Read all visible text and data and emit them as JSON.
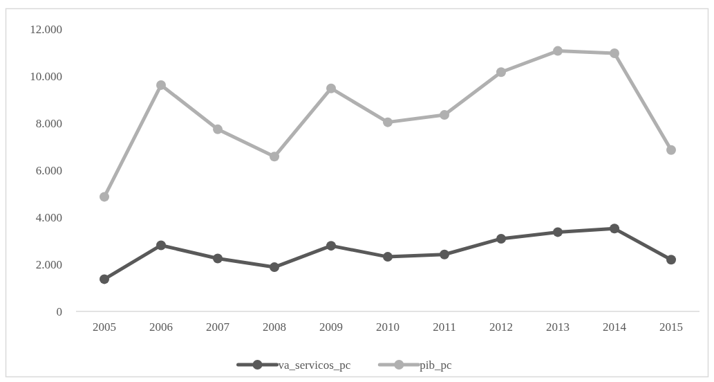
{
  "chart_data": {
    "type": "line",
    "categories": [
      "2005",
      "2006",
      "2007",
      "2008",
      "2009",
      "2010",
      "2011",
      "2012",
      "2013",
      "2014",
      "2015"
    ],
    "series": [
      {
        "name": "va_servicos_pc",
        "color": "#595959",
        "values": [
          1370,
          2810,
          2250,
          1880,
          2790,
          2320,
          2420,
          3090,
          3370,
          3520,
          2200
        ]
      },
      {
        "name": "pib_pc",
        "color": "#b0b0b0",
        "values": [
          4870,
          9620,
          7740,
          6580,
          9480,
          8040,
          8350,
          10170,
          11070,
          10970,
          6860
        ]
      }
    ],
    "ylim": [
      0,
      12000
    ],
    "yticks": [
      0,
      {
        "value": 2000,
        "label": "2.000"
      },
      {
        "value": 4000,
        "label": "4.000"
      },
      {
        "value": 6000,
        "label": "6.000"
      },
      {
        "value": 8000,
        "label": "8.000"
      },
      {
        "value": 10000,
        "label": "10.000"
      },
      {
        "value": 12000,
        "label": "12.000"
      }
    ],
    "grid": false,
    "legend": "bottom",
    "marker": "circle",
    "line_style": "solid"
  }
}
